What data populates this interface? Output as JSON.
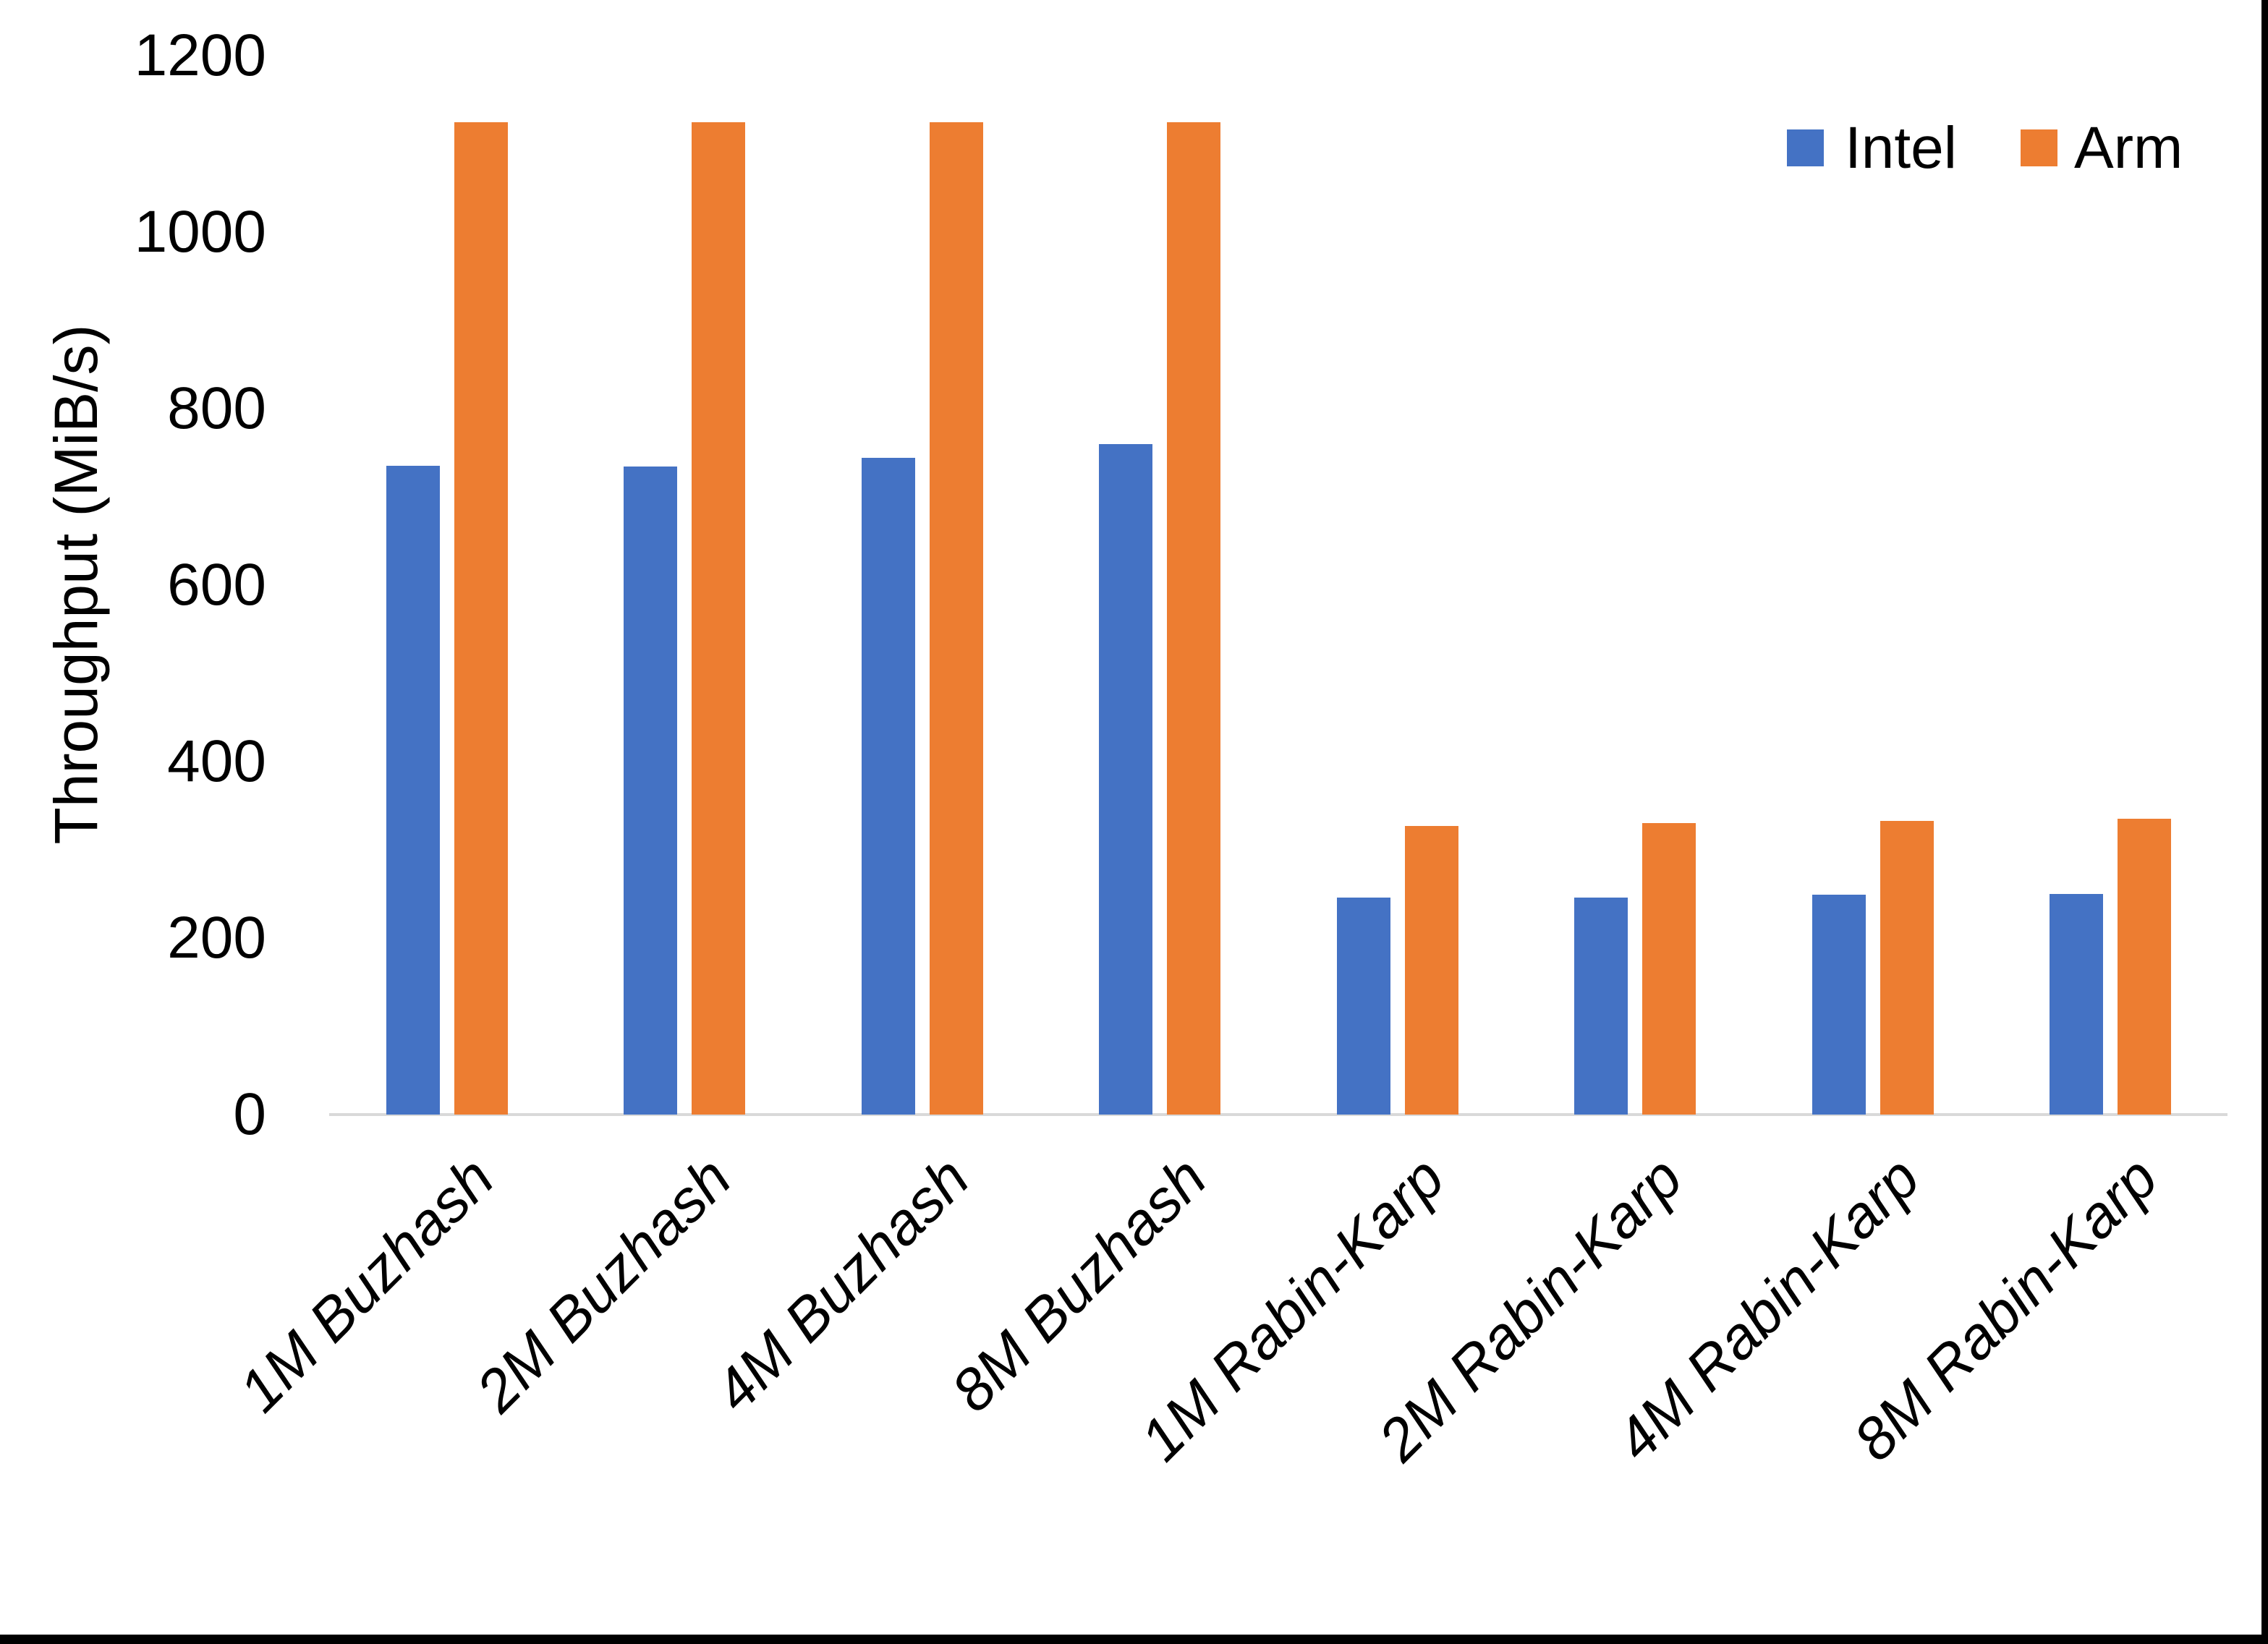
{
  "chart_data": {
    "type": "bar",
    "title": "",
    "categories": [
      "1M Buzhash",
      "2M Buzhash",
      "4M Buzhash",
      "8M Buzhash",
      "1M Rabin-Karp",
      "2M Rabin-Karp",
      "4M Rabin-Karp",
      "8M Rabin-Karp"
    ],
    "series": [
      {
        "name": "Intel",
        "color": "#4472C4",
        "values": [
          735,
          734,
          744,
          760,
          246,
          246,
          249,
          250
        ]
      },
      {
        "name": "Arm",
        "color": "#ED7D31",
        "values": [
          1124,
          1124,
          1124,
          1124,
          327,
          330,
          333,
          335
        ]
      }
    ],
    "xlabel": "",
    "ylabel": "Throughput (MiB/s)",
    "ylim": [
      0,
      1200
    ],
    "yticks": [
      0,
      200,
      400,
      600,
      800,
      1000,
      1200
    ],
    "grid": false,
    "legend_position": "top-right"
  },
  "colors": {
    "axis_line": "#d9d9d9",
    "frame_border": "#000000",
    "text": "#000000",
    "background": "#ffffff"
  }
}
